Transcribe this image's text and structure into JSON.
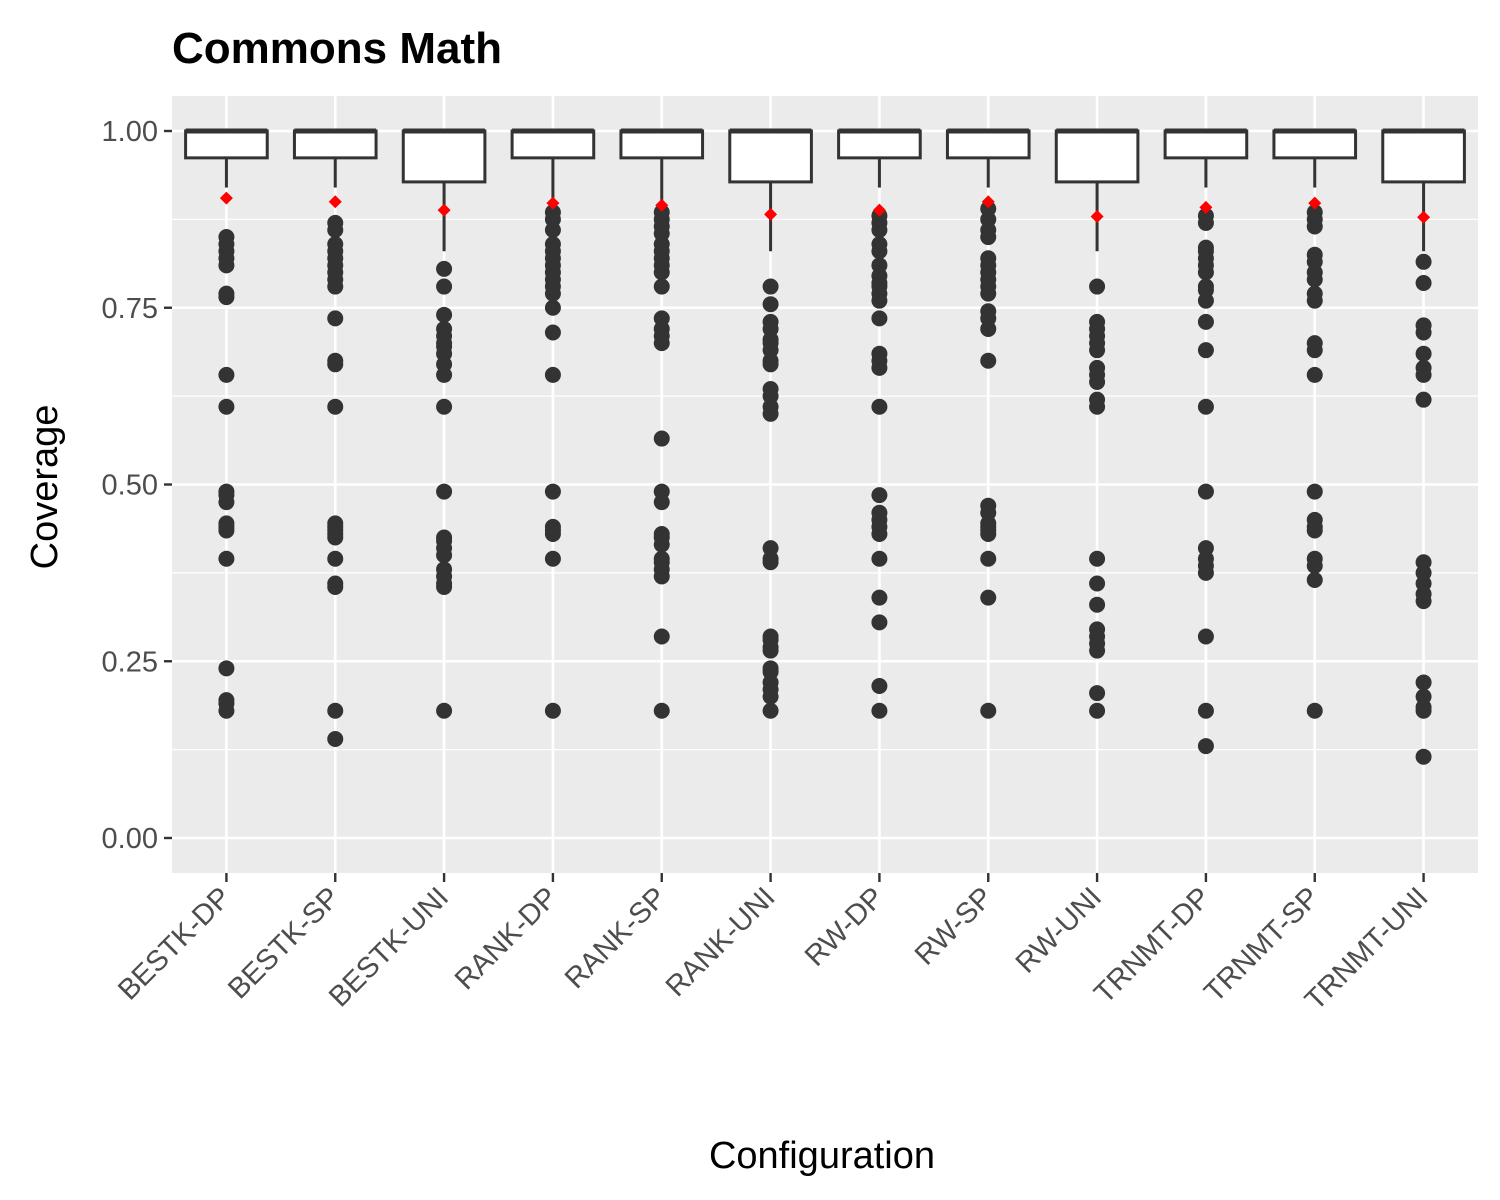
{
  "chart_data": {
    "type": "box",
    "title": "Commons Math",
    "xlabel": "Configuration",
    "ylabel": "Coverage",
    "ylim": [
      -0.05,
      1.05
    ],
    "yticks": [
      "0.00",
      "0.25",
      "0.50",
      "0.75",
      "1.00"
    ],
    "grid": true,
    "legend": "none",
    "colors": {
      "panel": "#ebebeb",
      "grid": "#ffffff",
      "box_fill": "#ffffff",
      "box_stroke": "#333333",
      "outlier": "#333333",
      "mean_marker": "#ff0000"
    },
    "categories": [
      "BESTK-DP",
      "BESTK-SP",
      "BESTK-UNI",
      "RANK-DP",
      "RANK-SP",
      "RANK-UNI",
      "RW-DP",
      "RW-SP",
      "RW-UNI",
      "TRNMT-DP",
      "TRNMT-SP",
      "TRNMT-UNI"
    ],
    "boxes": [
      {
        "name": "BESTK-DP",
        "q1": 0.962,
        "median": 1.0,
        "q3": 1.0,
        "whisker_low": 0.92,
        "whisker_high": 1.0,
        "mean": 0.905,
        "outliers": [
          0.85,
          0.84,
          0.83,
          0.82,
          0.81,
          0.77,
          0.765,
          0.655,
          0.61,
          0.49,
          0.485,
          0.475,
          0.445,
          0.44,
          0.435,
          0.395,
          0.24,
          0.195,
          0.19,
          0.18
        ]
      },
      {
        "name": "BESTK-SP",
        "q1": 0.962,
        "median": 1.0,
        "q3": 1.0,
        "whisker_low": 0.92,
        "whisker_high": 1.0,
        "mean": 0.9,
        "outliers": [
          0.87,
          0.86,
          0.84,
          0.83,
          0.82,
          0.81,
          0.8,
          0.79,
          0.78,
          0.735,
          0.675,
          0.67,
          0.61,
          0.445,
          0.44,
          0.435,
          0.43,
          0.425,
          0.395,
          0.36,
          0.355,
          0.18,
          0.14
        ]
      },
      {
        "name": "BESTK-UNI",
        "q1": 0.928,
        "median": 1.0,
        "q3": 1.0,
        "whisker_low": 0.83,
        "whisker_high": 1.0,
        "mean": 0.888,
        "outliers": [
          0.805,
          0.78,
          0.74,
          0.72,
          0.71,
          0.7,
          0.695,
          0.685,
          0.67,
          0.655,
          0.61,
          0.49,
          0.425,
          0.42,
          0.41,
          0.4,
          0.38,
          0.37,
          0.36,
          0.355,
          0.18
        ]
      },
      {
        "name": "RANK-DP",
        "q1": 0.962,
        "median": 1.0,
        "q3": 1.0,
        "whisker_low": 0.89,
        "whisker_high": 1.0,
        "mean": 0.898,
        "outliers": [
          0.885,
          0.875,
          0.86,
          0.84,
          0.83,
          0.82,
          0.81,
          0.8,
          0.79,
          0.78,
          0.77,
          0.75,
          0.715,
          0.655,
          0.49,
          0.44,
          0.435,
          0.43,
          0.395,
          0.18
        ]
      },
      {
        "name": "RANK-SP",
        "q1": 0.962,
        "median": 1.0,
        "q3": 1.0,
        "whisker_low": 0.89,
        "whisker_high": 1.0,
        "mean": 0.895,
        "outliers": [
          0.885,
          0.875,
          0.865,
          0.855,
          0.84,
          0.83,
          0.82,
          0.81,
          0.8,
          0.78,
          0.735,
          0.72,
          0.71,
          0.7,
          0.565,
          0.49,
          0.475,
          0.43,
          0.425,
          0.415,
          0.395,
          0.39,
          0.38,
          0.37,
          0.285,
          0.18
        ]
      },
      {
        "name": "RANK-UNI",
        "q1": 0.928,
        "median": 1.0,
        "q3": 1.0,
        "whisker_low": 0.83,
        "whisker_high": 1.0,
        "mean": 0.882,
        "outliers": [
          0.78,
          0.755,
          0.73,
          0.72,
          0.705,
          0.7,
          0.69,
          0.675,
          0.67,
          0.635,
          0.625,
          0.61,
          0.6,
          0.41,
          0.395,
          0.39,
          0.285,
          0.28,
          0.27,
          0.265,
          0.24,
          0.235,
          0.22,
          0.21,
          0.2,
          0.18
        ]
      },
      {
        "name": "RW-DP",
        "q1": 0.962,
        "median": 1.0,
        "q3": 1.0,
        "whisker_low": 0.92,
        "whisker_high": 1.0,
        "mean": 0.888,
        "outliers": [
          0.88,
          0.87,
          0.86,
          0.84,
          0.83,
          0.81,
          0.795,
          0.785,
          0.78,
          0.77,
          0.76,
          0.735,
          0.685,
          0.675,
          0.665,
          0.61,
          0.485,
          0.46,
          0.45,
          0.44,
          0.43,
          0.395,
          0.34,
          0.305,
          0.215,
          0.18
        ]
      },
      {
        "name": "RW-SP",
        "q1": 0.962,
        "median": 1.0,
        "q3": 1.0,
        "whisker_low": 0.92,
        "whisker_high": 1.0,
        "mean": 0.9,
        "outliers": [
          0.89,
          0.875,
          0.86,
          0.85,
          0.82,
          0.81,
          0.8,
          0.79,
          0.78,
          0.77,
          0.745,
          0.735,
          0.72,
          0.675,
          0.47,
          0.46,
          0.445,
          0.44,
          0.435,
          0.43,
          0.395,
          0.34,
          0.18
        ]
      },
      {
        "name": "RW-UNI",
        "q1": 0.928,
        "median": 1.0,
        "q3": 1.0,
        "whisker_low": 0.83,
        "whisker_high": 1.0,
        "mean": 0.879,
        "outliers": [
          0.78,
          0.73,
          0.72,
          0.71,
          0.7,
          0.69,
          0.665,
          0.655,
          0.645,
          0.62,
          0.61,
          0.395,
          0.36,
          0.33,
          0.295,
          0.285,
          0.275,
          0.265,
          0.205,
          0.18
        ]
      },
      {
        "name": "TRNMT-DP",
        "q1": 0.962,
        "median": 1.0,
        "q3": 1.0,
        "whisker_low": 0.92,
        "whisker_high": 1.0,
        "mean": 0.892,
        "outliers": [
          0.88,
          0.87,
          0.835,
          0.83,
          0.82,
          0.81,
          0.8,
          0.78,
          0.775,
          0.76,
          0.73,
          0.69,
          0.61,
          0.49,
          0.41,
          0.395,
          0.385,
          0.375,
          0.285,
          0.18,
          0.13
        ]
      },
      {
        "name": "TRNMT-SP",
        "q1": 0.962,
        "median": 1.0,
        "q3": 1.0,
        "whisker_low": 0.92,
        "whisker_high": 1.0,
        "mean": 0.898,
        "outliers": [
          0.885,
          0.875,
          0.865,
          0.825,
          0.815,
          0.8,
          0.79,
          0.77,
          0.76,
          0.7,
          0.69,
          0.655,
          0.49,
          0.45,
          0.44,
          0.435,
          0.395,
          0.385,
          0.365,
          0.18
        ]
      },
      {
        "name": "TRNMT-UNI",
        "q1": 0.928,
        "median": 1.0,
        "q3": 1.0,
        "whisker_low": 0.83,
        "whisker_high": 1.0,
        "mean": 0.878,
        "outliers": [
          0.815,
          0.785,
          0.725,
          0.715,
          0.685,
          0.665,
          0.655,
          0.62,
          0.39,
          0.375,
          0.36,
          0.345,
          0.335,
          0.22,
          0.2,
          0.185,
          0.18,
          0.115
        ]
      }
    ]
  }
}
